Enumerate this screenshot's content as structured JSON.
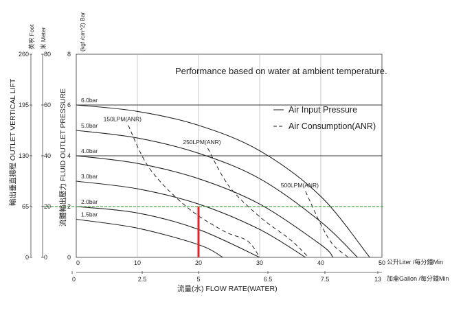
{
  "chart_data": {
    "type": "line",
    "title": "Performance based on water at ambient temperature.",
    "x_axes": {
      "liter": {
        "label": "公升Liter /每分鐘Min",
        "min": 0,
        "max": 50,
        "ticks": [
          0,
          10,
          20,
          30,
          40,
          50
        ]
      },
      "gallon": {
        "label": "加侖Gallon /每分鐘Min",
        "min": 0,
        "max": 13,
        "ticks": [
          "0",
          "2.5",
          "5",
          "6.5",
          "7.5",
          "13"
        ]
      }
    },
    "xlabel": "流量(水) FLOW RATE(WATER)",
    "y_axes": {
      "pressure": {
        "unit": "(kgf /cm^2) Bar",
        "label": "流體輸出壓力 FLUID OUTLET PRESSURE",
        "min": 0,
        "max": 8,
        "ticks": [
          0,
          2,
          4,
          6,
          8
        ]
      },
      "foot": {
        "unit": "英呎 Foot",
        "label": "輸出垂直揚程 OUTLET VERTICAL LIFT",
        "ticks": [
          "0",
          "65",
          "130",
          "195",
          "260"
        ]
      },
      "meter": {
        "unit": "米 Meter",
        "ticks": [
          "0",
          "20",
          "40",
          "60",
          "80"
        ]
      }
    },
    "series": [
      {
        "name": "1.5bar",
        "style": "solid",
        "points": [
          [
            0,
            1.5
          ],
          [
            10,
            1.15
          ],
          [
            20,
            0.5
          ],
          [
            24,
            0
          ]
        ]
      },
      {
        "name": "2.0bar",
        "style": "solid",
        "points": [
          [
            0,
            2.0
          ],
          [
            10,
            1.75
          ],
          [
            20,
            1.1
          ],
          [
            30,
            0
          ]
        ]
      },
      {
        "name": "3.0bar",
        "style": "solid",
        "points": [
          [
            0,
            3.0
          ],
          [
            10,
            2.7
          ],
          [
            20,
            2.1
          ],
          [
            30,
            1.1
          ],
          [
            37.5,
            0
          ]
        ]
      },
      {
        "name": "4.0bar",
        "style": "solid",
        "points": [
          [
            0,
            4.0
          ],
          [
            10,
            3.7
          ],
          [
            20,
            3.1
          ],
          [
            30,
            2.1
          ],
          [
            40,
            0.5
          ],
          [
            42,
            0
          ]
        ]
      },
      {
        "name": "5.0bar",
        "style": "solid",
        "points": [
          [
            0,
            5.0
          ],
          [
            10,
            4.7
          ],
          [
            20,
            4.1
          ],
          [
            30,
            3.1
          ],
          [
            40,
            1.4
          ],
          [
            46,
            0
          ]
        ]
      },
      {
        "name": "6.0bar",
        "style": "solid",
        "points": [
          [
            0,
            6.0
          ],
          [
            10,
            5.75
          ],
          [
            20,
            5.2
          ],
          [
            30,
            4.2
          ],
          [
            40,
            2.4
          ],
          [
            48,
            0
          ]
        ]
      }
    ],
    "air_consumption": [
      {
        "name": "150LPM(ANR)",
        "style": "dashed",
        "points": [
          [
            8.5,
            5.2
          ],
          [
            12,
            3.5
          ],
          [
            18,
            2.0
          ],
          [
            24,
            1.05
          ],
          [
            28,
            0.65
          ],
          [
            30,
            0
          ]
        ]
      },
      {
        "name": "250LPM(ANR)",
        "style": "dashed",
        "points": [
          [
            21.5,
            4.3
          ],
          [
            25,
            2.8
          ],
          [
            30,
            1.6
          ],
          [
            35,
            0.7
          ],
          [
            38,
            0
          ]
        ]
      },
      {
        "name": "500LPM(ANR)",
        "style": "dashed",
        "points": [
          [
            37.5,
            2.6
          ],
          [
            40,
            1.3
          ],
          [
            42,
            0.5
          ],
          [
            44.5,
            0
          ]
        ]
      }
    ],
    "legend": [
      {
        "label": "Air Input Pressure",
        "style": "solid"
      },
      {
        "label": "Air Consumption(ANR)",
        "style": "dashed"
      }
    ],
    "legend_position": "top-right",
    "grid": true,
    "reference": {
      "pressure_bar": 2,
      "flow_lpm": 20,
      "reference_color": "#4aa84a",
      "marker_color": "#e02424"
    }
  }
}
